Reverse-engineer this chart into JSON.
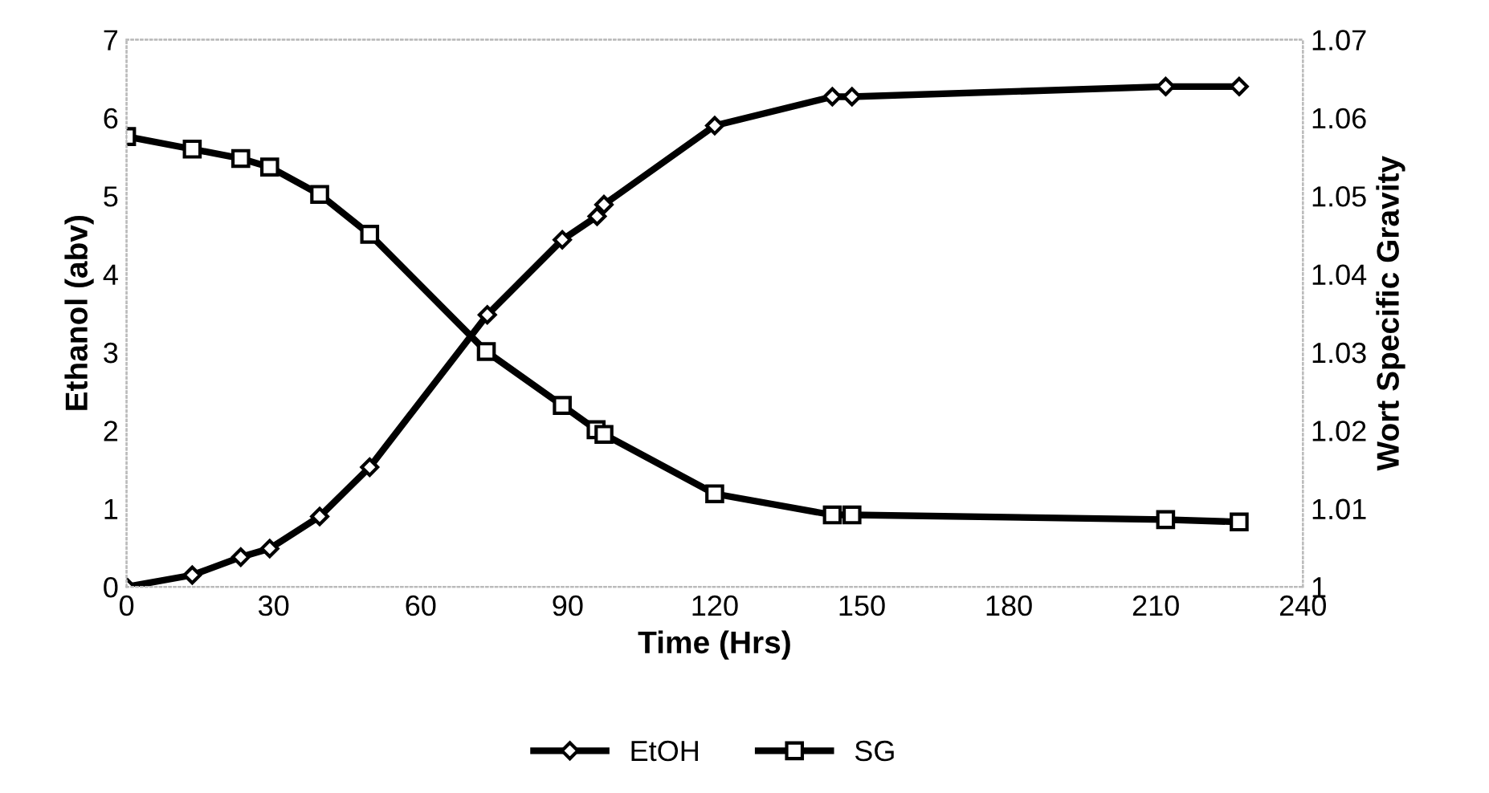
{
  "chart_data": {
    "type": "line",
    "xlabel": "Time (Hrs)",
    "ylabel": "Ethanol (abv)",
    "y2label": "Wort Specific Gravity",
    "series": [
      {
        "name": "EtOH",
        "color": "#000000",
        "marker": "diamond",
        "x": [
          0,
          13.4,
          23.3,
          29.2,
          39.4,
          49.6,
          73.6,
          88.9,
          96,
          97.4,
          120,
          144,
          148,
          212,
          227
        ],
        "values": [
          0,
          0.15,
          0.38,
          0.49,
          0.9,
          1.53,
          3.48,
          4.44,
          4.74,
          4.89,
          5.9,
          6.27,
          6.27,
          6.4,
          6.4
        ]
      },
      {
        "name": "SG",
        "color": "#000000",
        "marker": "square",
        "axis": "y2",
        "x": [
          0,
          13.4,
          23.3,
          29.2,
          39.4,
          49.6,
          73.4,
          88.9,
          95.8,
          97.4,
          120,
          144,
          148,
          212,
          227
        ],
        "values": [
          1.0576,
          1.056,
          1.0548,
          1.0537,
          1.0502,
          1.0451,
          1.0301,
          1.0232,
          1.0201,
          1.0195,
          1.0119,
          1.0092,
          1.0092,
          1.0086,
          1.0083
        ]
      }
    ],
    "xlim": [
      0,
      240
    ],
    "xticks": [
      0,
      30,
      60,
      90,
      120,
      150,
      180,
      210,
      240
    ],
    "ylim": [
      0,
      7
    ],
    "yticks": [
      0,
      1,
      2,
      3,
      4,
      5,
      6,
      7
    ],
    "y2lim": [
      1,
      1.07
    ],
    "y2ticks": [
      1,
      1.01,
      1.02,
      1.03,
      1.04,
      1.05,
      1.06,
      1.07
    ],
    "legend": "bottom",
    "grid": false,
    "line_style": "solid"
  }
}
